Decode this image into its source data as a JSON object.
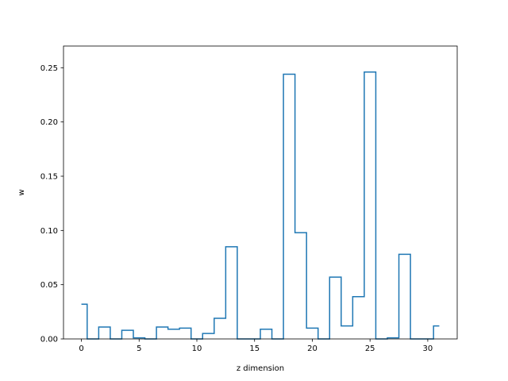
{
  "chart_data": {
    "type": "line",
    "drawstyle": "steps-mid",
    "xlabel": "z dimension",
    "ylabel": "w",
    "xlim": [
      -1.55,
      32.55
    ],
    "ylim": [
      0,
      0.27
    ],
    "xticks": [
      0,
      5,
      10,
      15,
      20,
      25,
      30
    ],
    "xtick_labels": [
      "0",
      "5",
      "10",
      "15",
      "20",
      "25",
      "30"
    ],
    "yticks": [
      0.0,
      0.05,
      0.1,
      0.15,
      0.2,
      0.25
    ],
    "ytick_labels": [
      "0.00",
      "0.05",
      "0.10",
      "0.15",
      "0.20",
      "0.25"
    ],
    "grid": false,
    "color": "#1f77b4",
    "x": [
      0,
      1,
      2,
      3,
      4,
      5,
      6,
      7,
      8,
      9,
      10,
      11,
      12,
      13,
      14,
      15,
      16,
      17,
      18,
      19,
      20,
      21,
      22,
      23,
      24,
      25,
      26,
      27,
      28,
      29,
      30,
      31
    ],
    "values": [
      0.032,
      0.0,
      0.011,
      0.0,
      0.008,
      0.001,
      0.0,
      0.011,
      0.009,
      0.01,
      0.0,
      0.005,
      0.019,
      0.085,
      0.0,
      0.0,
      0.009,
      0.0,
      0.244,
      0.098,
      0.01,
      0.0,
      0.057,
      0.012,
      0.039,
      0.246,
      0.0,
      0.001,
      0.078,
      0.0,
      0.0,
      0.012
    ]
  }
}
